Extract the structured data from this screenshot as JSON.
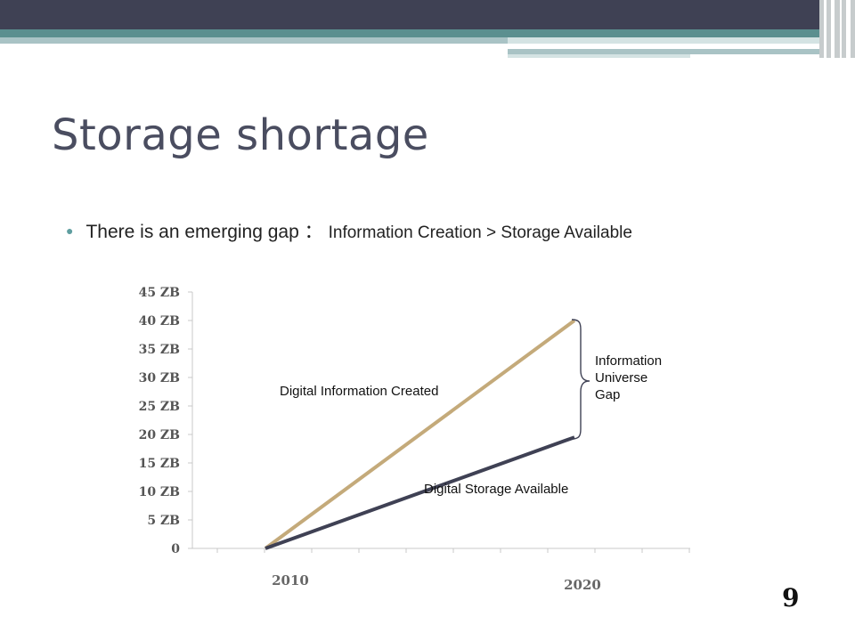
{
  "slide": {
    "title": "Storage shortage",
    "bullet": {
      "main": "There is an emerging gap ：",
      "sub": "Information Creation > Storage Available"
    },
    "page_number": "9",
    "colors": {
      "title": "#4a4d60",
      "header_dark": "#3f4154",
      "header_teal": "#5b8f8f",
      "bullet_dot": "#5f9ea0"
    }
  },
  "chart_data": {
    "type": "line",
    "title": "",
    "xlabel": "",
    "ylabel": "",
    "x": [
      "2010",
      "2020"
    ],
    "ylim": [
      0,
      45
    ],
    "y_ticks": [
      "0",
      "5 ZB",
      "10 ZB",
      "15 ZB",
      "20 ZB",
      "25 ZB",
      "30 ZB",
      "35 ZB",
      "40 ZB",
      "45 ZB"
    ],
    "grid": false,
    "series": [
      {
        "name": "Digital Information Created",
        "values": [
          0,
          40
        ],
        "color": "#c4aa7a"
      },
      {
        "name": "Digital Storage Available",
        "values": [
          0,
          19.5
        ],
        "color": "#3f4154"
      }
    ],
    "annotation": {
      "lines": [
        "Information",
        "Universe",
        "Gap"
      ]
    }
  }
}
